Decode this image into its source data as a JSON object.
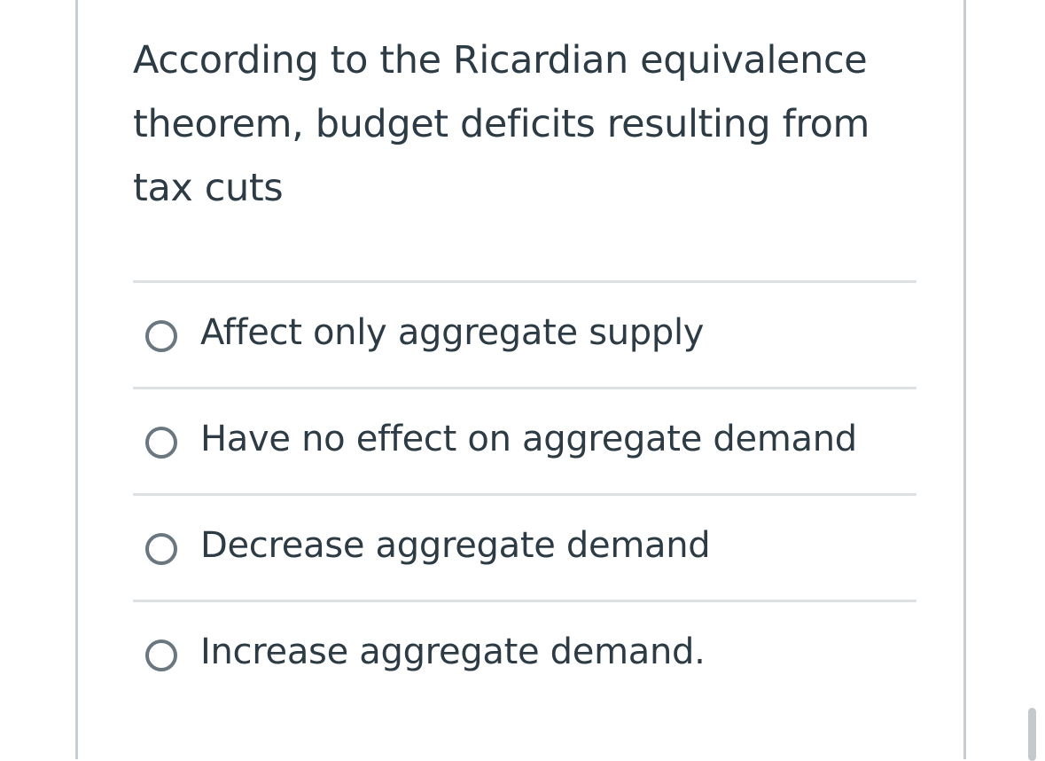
{
  "question": {
    "text": "According to the Ricardian equivalence theorem, budget deficits resulting from tax cuts"
  },
  "answers": [
    {
      "label": "Affect only aggregate supply"
    },
    {
      "label": "Have no effect on aggregate demand"
    },
    {
      "label": "Decrease aggregate demand"
    },
    {
      "label": "Increase aggregate demand."
    }
  ],
  "colors": {
    "text": "#2d3b45",
    "radio_border": "#6b7780",
    "divider": "#dde1e4",
    "card_border": "#c7cdd1"
  }
}
